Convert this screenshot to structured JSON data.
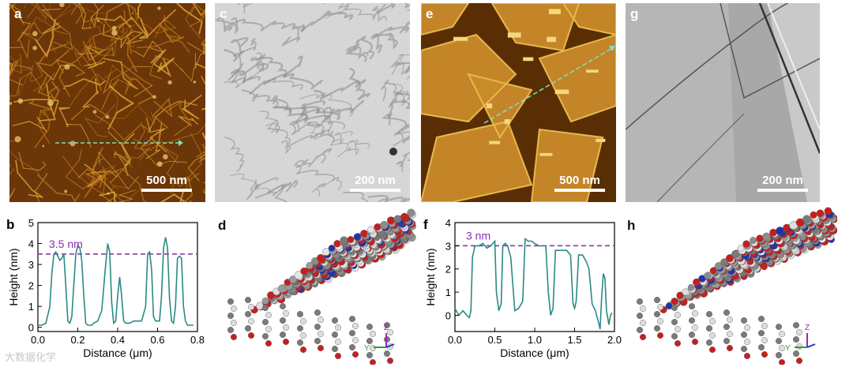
{
  "panels": {
    "a": {
      "label": "a",
      "scale": "500 nm"
    },
    "c": {
      "label": "c",
      "scale": "200 nm"
    },
    "e": {
      "label": "e",
      "scale": "500 nm"
    },
    "g": {
      "label": "g",
      "scale": "200 nm"
    },
    "d": {
      "label": "d"
    },
    "h": {
      "label": "h"
    }
  },
  "axes_tri": {
    "z": "Z",
    "y": "Y"
  },
  "watermark": "大数据化学",
  "colors": {
    "profile": "#2a8a84",
    "dashed": "#8a3ba0",
    "annot": "#8a2fb0",
    "afm_dark": "#5a2e05",
    "afm_bright": "#e8b94a"
  },
  "chart_data": [
    {
      "id": "b",
      "panel_label": "b",
      "type": "line",
      "xlabel": "Distance (μm)",
      "ylabel": "Height (nm)",
      "xlim": [
        0,
        0.8
      ],
      "ylim": [
        -0.2,
        5
      ],
      "xticks": [
        "0.0",
        "0.2",
        "0.4",
        "0.6",
        "0.8"
      ],
      "xtick_values": [
        0,
        0.2,
        0.4,
        0.6,
        0.8
      ],
      "yticks": [
        "0",
        "1",
        "2",
        "3",
        "4",
        "5"
      ],
      "ytick_values": [
        0,
        1,
        2,
        3,
        4,
        5
      ],
      "reference_line": 3.5,
      "annotation": "3.5 nm",
      "series": [
        {
          "x": [
            0.0,
            0.02,
            0.04,
            0.06,
            0.07,
            0.08,
            0.09,
            0.1,
            0.11,
            0.12,
            0.13,
            0.14,
            0.15,
            0.16,
            0.17,
            0.18,
            0.19,
            0.2,
            0.21,
            0.22,
            0.23,
            0.24,
            0.25,
            0.26,
            0.27,
            0.28,
            0.3,
            0.32,
            0.34,
            0.35,
            0.36,
            0.37,
            0.38,
            0.39,
            0.4,
            0.41,
            0.42,
            0.43,
            0.44,
            0.45,
            0.46,
            0.48,
            0.5,
            0.52,
            0.54,
            0.55,
            0.56,
            0.57,
            0.58,
            0.59,
            0.6,
            0.61,
            0.62,
            0.63,
            0.64,
            0.65,
            0.66,
            0.67,
            0.68,
            0.69,
            0.7,
            0.71,
            0.72,
            0.73,
            0.74,
            0.75,
            0.76,
            0.78
          ],
          "y": [
            0.1,
            0.1,
            0.2,
            1.0,
            2.6,
            3.5,
            3.6,
            3.4,
            3.2,
            3.3,
            3.5,
            2.0,
            0.3,
            0.2,
            0.5,
            2.0,
            3.5,
            3.9,
            3.8,
            3.2,
            1.5,
            0.2,
            0.1,
            0.1,
            0.1,
            0.2,
            0.3,
            0.8,
            3.0,
            4.0,
            3.6,
            1.2,
            0.2,
            0.3,
            1.5,
            2.4,
            1.5,
            0.3,
            0.2,
            0.2,
            0.2,
            0.3,
            0.3,
            0.3,
            1.0,
            3.5,
            3.6,
            2.8,
            0.5,
            0.3,
            0.3,
            0.3,
            1.5,
            3.8,
            4.3,
            3.8,
            1.4,
            0.3,
            0.2,
            1.0,
            3.3,
            3.4,
            3.3,
            1.0,
            0.3,
            0.1,
            0.1,
            0.1
          ]
        }
      ]
    },
    {
      "id": "f",
      "panel_label": "f",
      "type": "line",
      "xlabel": "Distance (μm)",
      "ylabel": "Height (nm)",
      "xlim": [
        0,
        2.0
      ],
      "ylim": [
        -0.7,
        4
      ],
      "xticks": [
        "0.0",
        "0.5",
        "1.0",
        "1.5",
        "2.0"
      ],
      "xtick_values": [
        0,
        0.5,
        1.0,
        1.5,
        2.0
      ],
      "yticks": [
        "0",
        "1",
        "2",
        "3",
        "4"
      ],
      "ytick_values": [
        0,
        1,
        2,
        3,
        4
      ],
      "reference_line": 3.0,
      "annotation": "3 nm",
      "series": [
        {
          "x": [
            0.0,
            0.05,
            0.1,
            0.15,
            0.18,
            0.2,
            0.22,
            0.25,
            0.3,
            0.35,
            0.4,
            0.45,
            0.5,
            0.52,
            0.55,
            0.58,
            0.6,
            0.63,
            0.66,
            0.7,
            0.75,
            0.8,
            0.85,
            0.88,
            0.92,
            0.96,
            1.0,
            1.05,
            1.1,
            1.14,
            1.17,
            1.2,
            1.23,
            1.26,
            1.3,
            1.35,
            1.4,
            1.45,
            1.48,
            1.5,
            1.52,
            1.55,
            1.6,
            1.65,
            1.68,
            1.72,
            1.76,
            1.8,
            1.82,
            1.84,
            1.86,
            1.88,
            1.9,
            1.93,
            1.95,
            1.97
          ],
          "y": [
            0.3,
            0.0,
            0.2,
            0.0,
            -0.1,
            0.2,
            2.5,
            3.0,
            3.0,
            3.1,
            2.9,
            3.0,
            3.2,
            1.0,
            0.2,
            0.5,
            3.0,
            3.1,
            3.0,
            2.5,
            0.2,
            0.3,
            0.6,
            3.3,
            3.2,
            3.2,
            3.1,
            3.0,
            3.0,
            3.0,
            1.0,
            0.0,
            0.3,
            2.8,
            2.8,
            2.8,
            2.8,
            2.6,
            0.5,
            0.3,
            0.6,
            2.6,
            2.6,
            2.3,
            2.0,
            0.5,
            0.2,
            -0.3,
            -0.6,
            0.8,
            1.8,
            1.6,
            0.2,
            -0.4,
            0.0,
            0.1
          ]
        }
      ]
    }
  ]
}
